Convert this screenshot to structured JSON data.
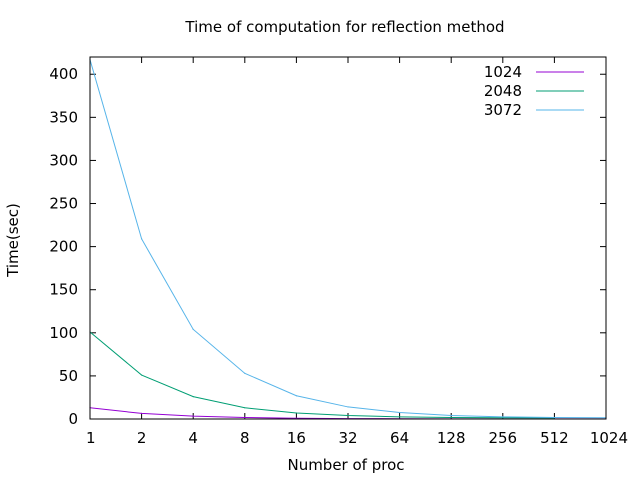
{
  "chart_data": {
    "type": "line",
    "title": "Time of computation for reflection method",
    "xlabel": "Number of proc",
    "ylabel": "Time(sec)",
    "x_scale": "log2",
    "x": [
      1,
      2,
      4,
      8,
      16,
      32,
      64,
      128,
      256,
      512,
      1024
    ],
    "x_tick_labels": [
      "1",
      "2",
      "4",
      "8",
      "16",
      "32",
      "64",
      "128",
      "256",
      "512",
      "1024"
    ],
    "y_ticks": [
      0,
      50,
      100,
      150,
      200,
      250,
      300,
      350,
      400
    ],
    "y_tick_labels": [
      "0",
      "50",
      "100",
      "150",
      "200",
      "250",
      "300",
      "350",
      "400"
    ],
    "xlim": [
      1,
      1024
    ],
    "ylim": [
      0,
      420
    ],
    "grid": false,
    "legend_position": "top-right",
    "series": [
      {
        "name": "1024",
        "color": "#9400d3",
        "x": [
          1,
          2,
          4,
          8,
          16,
          32,
          64,
          128,
          256,
          512,
          1024
        ],
        "values": [
          13,
          6.5,
          3.3,
          1.7,
          0.9,
          0.5,
          0.3,
          0.2,
          0.1,
          0.1,
          0.1
        ]
      },
      {
        "name": "2048",
        "color": "#009e73",
        "x": [
          1,
          2,
          4,
          8,
          16,
          32,
          64,
          128,
          256,
          512
        ],
        "values": [
          101,
          51,
          26,
          13,
          7,
          4,
          2.5,
          1.7,
          1.5,
          1.3
        ]
      },
      {
        "name": "3072",
        "color": "#56b4e9",
        "x": [
          1,
          2,
          4,
          8,
          16,
          32,
          64,
          128,
          256,
          512,
          1024
        ],
        "values": [
          417,
          209,
          104,
          53,
          27,
          14,
          7.5,
          4,
          2.5,
          1.8,
          1.5
        ]
      }
    ]
  }
}
